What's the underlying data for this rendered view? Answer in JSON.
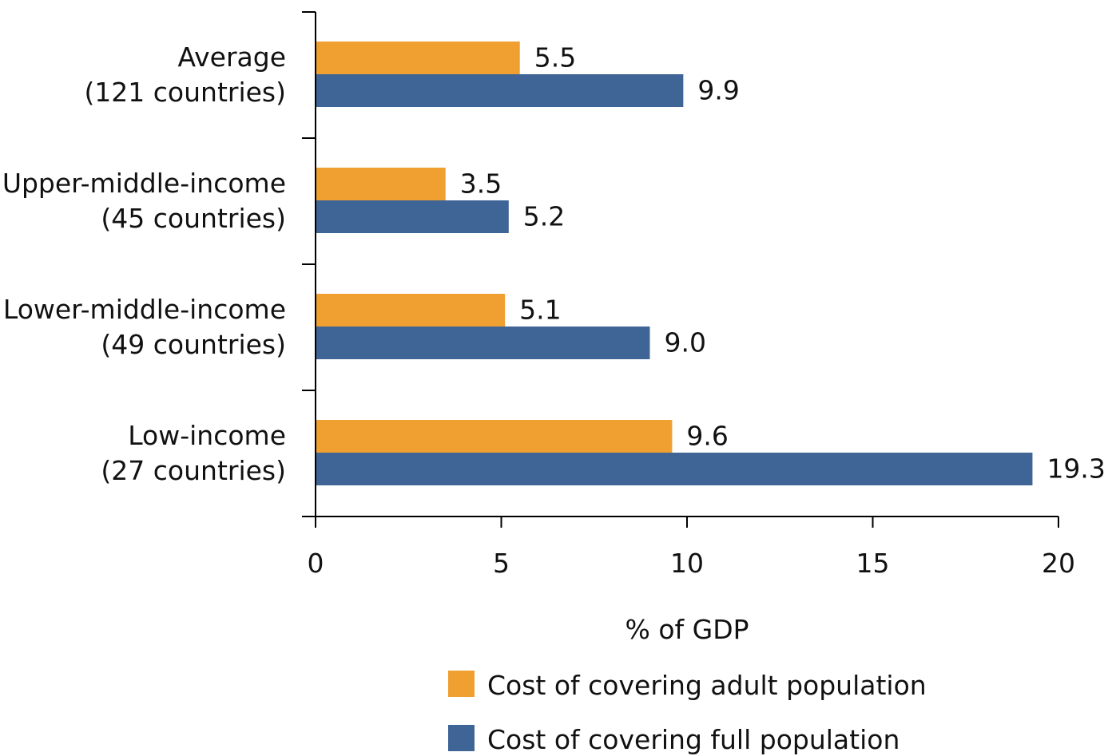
{
  "chart_data": {
    "type": "bar",
    "orientation": "horizontal",
    "categories": [
      {
        "line1": "Average",
        "line2": "(121 countries)",
        "highlight": true
      },
      {
        "line1": "Upper-middle-income",
        "line2": "(45 countries)",
        "highlight": false
      },
      {
        "line1": "Lower-middle-income",
        "line2": "(49 countries)",
        "highlight": false
      },
      {
        "line1": "Low-income",
        "line2": "(27 countries)",
        "highlight": false
      }
    ],
    "series": [
      {
        "name": "Cost of covering adult population",
        "color": "#F0A030",
        "values": [
          5.5,
          3.5,
          5.1,
          9.6
        ],
        "labels": [
          "5.5",
          "3.5",
          "5.1",
          "9.6"
        ]
      },
      {
        "name": "Cost of covering full population",
        "color": "#3F6496",
        "values": [
          9.9,
          5.2,
          9.0,
          19.3
        ],
        "labels": [
          "9.9",
          "5.2",
          "9.0",
          "19.3"
        ]
      }
    ],
    "xlabel": "% of GDP",
    "xlim": [
      0,
      20
    ],
    "xticks": [
      0,
      5,
      10,
      15,
      20
    ],
    "grid": false,
    "legend_position": "bottom",
    "colors": {
      "highlight_label": "#E8603A",
      "axis": "#000000"
    }
  }
}
